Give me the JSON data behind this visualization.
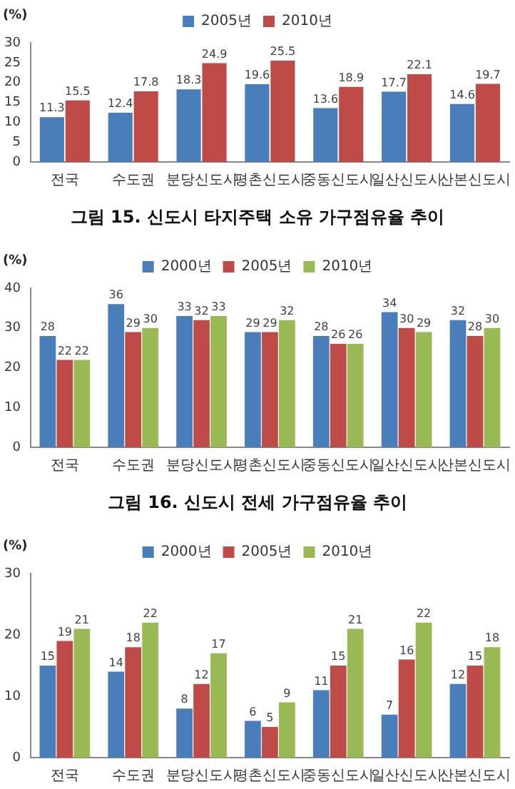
{
  "chart_data": [
    {
      "type": "bar",
      "title": "그림 15. 신도시 타지주택 소유 가구점유율 추이",
      "ylabel": "(%)",
      "categories": [
        "전국",
        "수도권",
        "분당신도시",
        "평촌신도시",
        "중동신도시",
        "일산신도시",
        "산본신도시"
      ],
      "series": [
        {
          "name": "2005년",
          "color": "#4a7ebb",
          "values": [
            11.3,
            12.4,
            18.3,
            19.6,
            13.6,
            17.7,
            14.6
          ]
        },
        {
          "name": "2010년",
          "color": "#be4b48",
          "values": [
            15.5,
            17.8,
            24.9,
            25.5,
            18.9,
            22.1,
            19.7
          ]
        }
      ],
      "ylim": [
        0,
        30
      ],
      "yticks": [
        0,
        5,
        10,
        15,
        20,
        25,
        30
      ],
      "grid": false,
      "legend": "top",
      "data_labels": true
    },
    {
      "type": "bar",
      "title": "그림 16. 신도시 전세 가구점유율 추이",
      "ylabel": "(%)",
      "categories": [
        "전국",
        "수도권",
        "분당신도시",
        "평촌신도시",
        "중동신도시",
        "일산신도시",
        "산본신도시"
      ],
      "series": [
        {
          "name": "2000년",
          "color": "#4a7ebb",
          "values": [
            28,
            36,
            33,
            29,
            28,
            34,
            32
          ]
        },
        {
          "name": "2005년",
          "color": "#be4b48",
          "values": [
            22,
            29,
            32,
            29,
            26,
            30,
            28
          ]
        },
        {
          "name": "2010년",
          "color": "#98b954",
          "values": [
            22,
            30,
            33,
            32,
            26,
            29,
            30
          ]
        }
      ],
      "ylim": [
        0,
        40
      ],
      "yticks": [
        0,
        10,
        20,
        30,
        40
      ],
      "grid": false,
      "legend": "top",
      "data_labels": true
    },
    {
      "type": "bar",
      "ylabel": "(%)",
      "categories": [
        "전국",
        "수도권",
        "분당신도시",
        "평촌신도시",
        "중동신도시",
        "일산신도시",
        "산본신도시"
      ],
      "series": [
        {
          "name": "2000년",
          "color": "#4a7ebb",
          "values": [
            15,
            14,
            8,
            6,
            11,
            7,
            12
          ]
        },
        {
          "name": "2005년",
          "color": "#be4b48",
          "values": [
            19,
            18,
            12,
            5,
            15,
            16,
            15
          ]
        },
        {
          "name": "2010년",
          "color": "#98b954",
          "values": [
            21,
            22,
            17,
            9,
            21,
            22,
            18
          ]
        }
      ],
      "ylim": [
        0,
        30
      ],
      "yticks": [
        0,
        10,
        20,
        30
      ],
      "grid": false,
      "legend": "top",
      "data_labels": true
    }
  ]
}
